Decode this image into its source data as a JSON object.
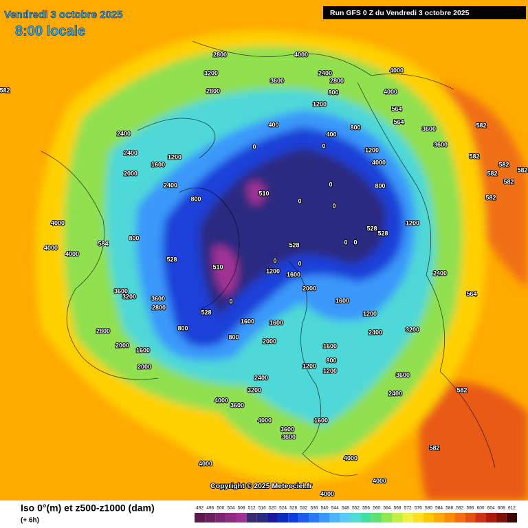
{
  "header": {
    "date": "Vendredi 3 octobre 2025",
    "time": "8:00 locale",
    "run": "Run GFS 0 Z du Vendredi 3 octobre 2025"
  },
  "copyright": "Copyright © 2025 Meteociel.fr",
  "legend": {
    "title": "Iso 0°(m) et z500-z1000 (dam)",
    "subtitle": "(+ 6h)",
    "ticks": [
      492,
      496,
      500,
      504,
      508,
      512,
      516,
      520,
      524,
      528,
      532,
      536,
      540,
      544,
      548,
      552,
      556,
      560,
      564,
      568,
      572,
      576,
      580,
      584,
      588,
      592,
      596,
      600,
      604,
      608,
      612
    ],
    "colors": [
      "#5a1a4a",
      "#6b1f5e",
      "#7d2470",
      "#8e2a82",
      "#a03094",
      "#3a2a6e",
      "#2a2a80",
      "#1a1aa0",
      "#0a2ac0",
      "#0a3ee0",
      "#1a5cf0",
      "#2a7af8",
      "#3a98fa",
      "#4ab4fc",
      "#5acaf8",
      "#50dcd0",
      "#40e0a0",
      "#60e070",
      "#90e850",
      "#c0f040",
      "#f0f040",
      "#ffe020",
      "#ffc800",
      "#ffaa00",
      "#ff8c00",
      "#f86c10",
      "#e85010",
      "#d03010",
      "#b01808",
      "#801008",
      "#400404"
    ]
  },
  "contour_labels": [
    2800,
    3200,
    2800,
    4000,
    2400,
    3600,
    2800,
    4000,
    4000,
    800,
    1200,
    400,
    400,
    800,
    2400,
    2400,
    1600,
    1200,
    0,
    0,
    510,
    0,
    0,
    0,
    800,
    800,
    2400,
    2000,
    4000,
    4000,
    4000,
    584,
    800,
    528,
    528,
    528,
    528,
    0,
    0,
    1200,
    510,
    0,
    528,
    800,
    3600,
    3200,
    3600,
    2800,
    2400,
    564,
    2000,
    1600,
    1200,
    0,
    0,
    1200,
    1600,
    1600,
    800,
    1600,
    2000,
    1600,
    800,
    1200,
    1200,
    2400,
    3200,
    4000,
    3600,
    4000,
    3600,
    3600,
    1600,
    3200,
    2400,
    3600,
    2400,
    582,
    582,
    4000,
    4000,
    4000,
    4000,
    2000,
    1600,
    2000,
    2800,
    582,
    582,
    582,
    582,
    582,
    582,
    582,
    582,
    564,
    3600,
    3600,
    1200,
    4000,
    564
  ]
}
